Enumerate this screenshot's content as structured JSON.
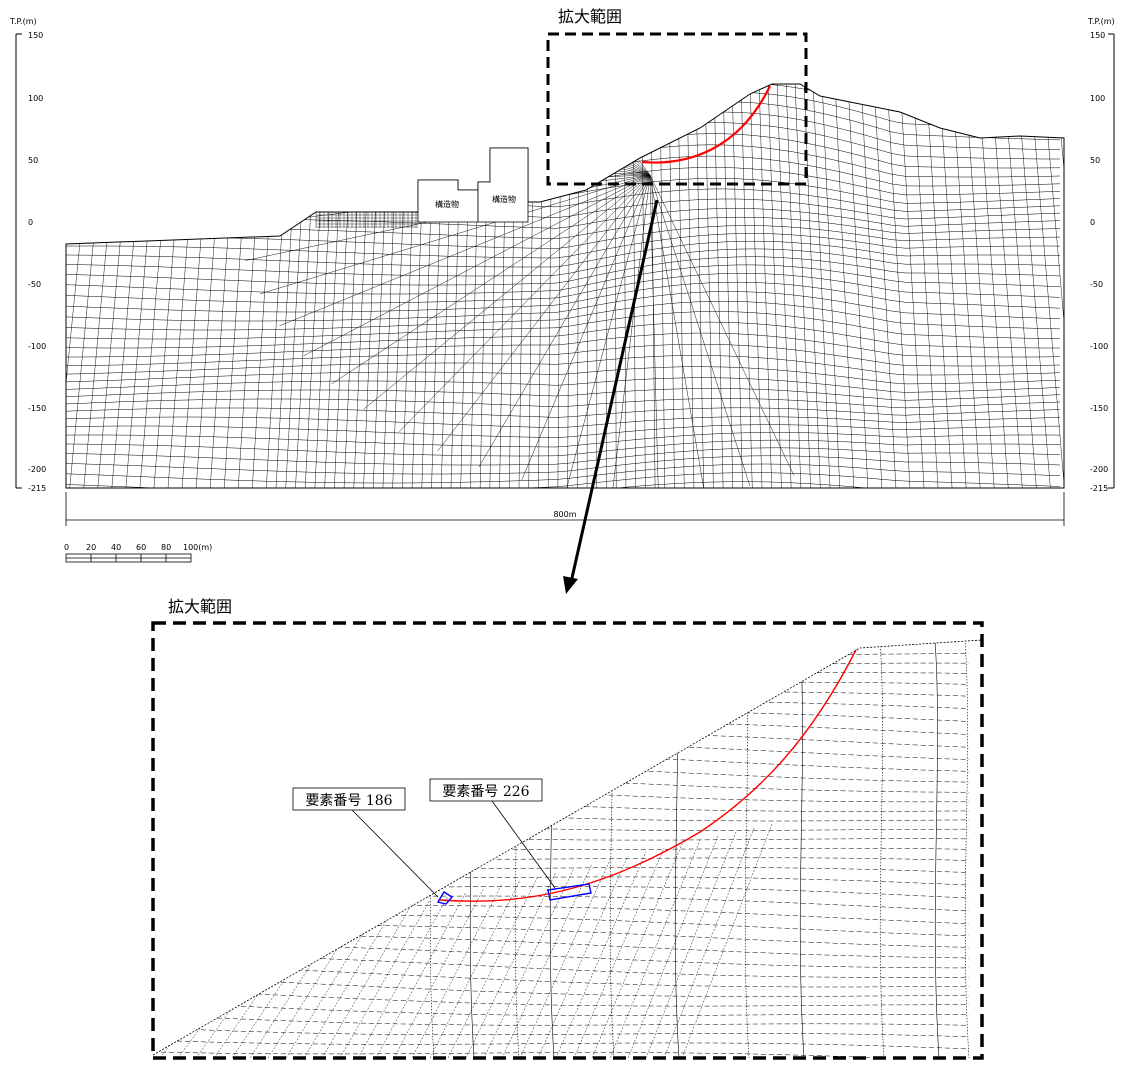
{
  "enlarge_label": "拡大範囲",
  "enlarge_label_detail": "拡大範囲",
  "axis_unit_left": "T.P.(m)",
  "axis_unit_right": "T.P.(m)",
  "axis_ticks": [
    "150",
    "100",
    "50",
    "0",
    "-50",
    "-100",
    "-150",
    "-200",
    "-215"
  ],
  "structure_1": "構造物",
  "structure_2": "構造物",
  "width_dimension": "800m",
  "scale_bar": {
    "labels": [
      "0",
      "20",
      "40",
      "60",
      "80",
      "100(m)"
    ]
  },
  "element_labels": [
    "要素番号 186",
    "要素番号 226"
  ],
  "colors": {
    "slip_surface": "#ff0000",
    "element_highlight": "#0000ff",
    "mesh": "#000000"
  }
}
